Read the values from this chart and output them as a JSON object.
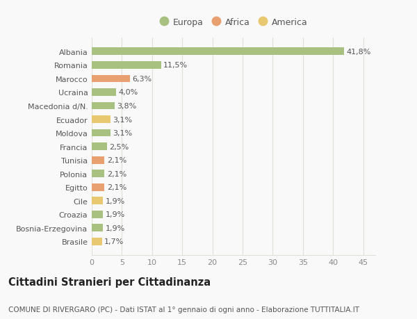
{
  "categories": [
    "Albania",
    "Romania",
    "Marocco",
    "Ucraina",
    "Macedonia d/N.",
    "Ecuador",
    "Moldova",
    "Francia",
    "Tunisia",
    "Polonia",
    "Egitto",
    "Cile",
    "Croazia",
    "Bosnia-Erzegovina",
    "Brasile"
  ],
  "values": [
    41.8,
    11.5,
    6.3,
    4.0,
    3.8,
    3.1,
    3.1,
    2.5,
    2.1,
    2.1,
    2.1,
    1.9,
    1.9,
    1.9,
    1.7
  ],
  "labels": [
    "41,8%",
    "11,5%",
    "6,3%",
    "4,0%",
    "3,8%",
    "3,1%",
    "3,1%",
    "2,5%",
    "2,1%",
    "2,1%",
    "2,1%",
    "1,9%",
    "1,9%",
    "1,9%",
    "1,7%"
  ],
  "continents": [
    "Europa",
    "Europa",
    "Africa",
    "Europa",
    "Europa",
    "America",
    "Europa",
    "Europa",
    "Africa",
    "Europa",
    "Africa",
    "America",
    "Europa",
    "Europa",
    "America"
  ],
  "continent_colors": {
    "Europa": "#a8c080",
    "Africa": "#e8a070",
    "America": "#e8c870"
  },
  "legend_items": [
    "Europa",
    "Africa",
    "America"
  ],
  "title1": "Cittadini Stranieri per Cittadinanza",
  "title2": "COMUNE DI RIVERGARO (PC) - Dati ISTAT al 1° gennaio di ogni anno - Elaborazione TUTTITALIA.IT",
  "xlim": [
    0,
    47
  ],
  "xticks": [
    0,
    5,
    10,
    15,
    20,
    25,
    30,
    35,
    40,
    45
  ],
  "background_color": "#f9f9f9",
  "grid_color": "#e0e0d8",
  "bar_height": 0.55,
  "label_fontsize": 8,
  "tick_fontsize": 8,
  "title1_fontsize": 10.5,
  "title2_fontsize": 7.5,
  "legend_fontsize": 9
}
